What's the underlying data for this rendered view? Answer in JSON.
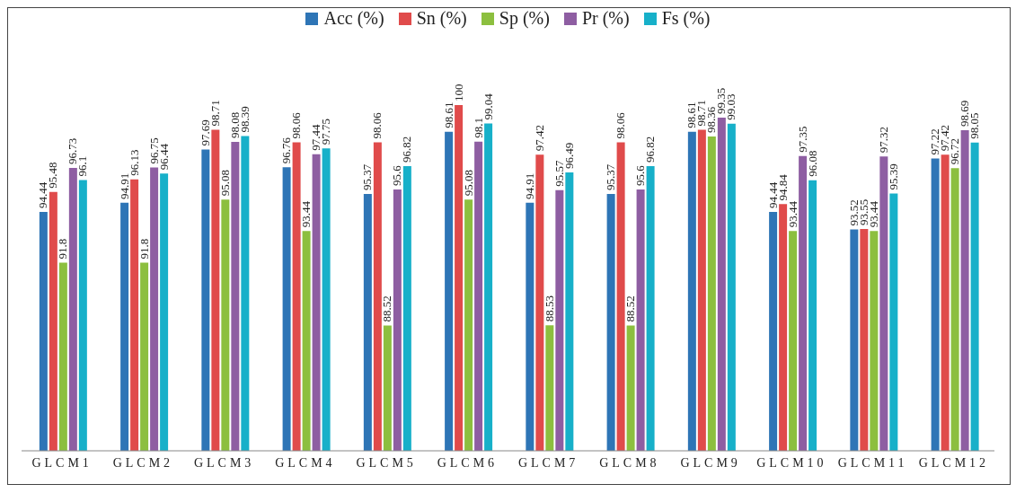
{
  "chart_data": {
    "type": "bar",
    "categories": [
      "GLCM1",
      "GLCM2",
      "GLCM3",
      "GLCM4",
      "GLCM5",
      "GLCM6",
      "GLCM7",
      "GLCM8",
      "GLCM9",
      "GLCM10",
      "GLCM11",
      "GLCM12"
    ],
    "series": [
      {
        "name": "Acc (%)",
        "color": "#2e75b6",
        "values": [
          94.44,
          94.91,
          97.69,
          96.76,
          95.37,
          98.61,
          94.91,
          95.37,
          98.61,
          94.44,
          93.52,
          97.22
        ]
      },
      {
        "name": "Sn (%)",
        "color": "#e04b4b",
        "values": [
          95.48,
          96.13,
          98.71,
          98.06,
          98.06,
          100,
          97.42,
          98.06,
          98.71,
          94.84,
          93.55,
          97.42
        ]
      },
      {
        "name": "Sp (%)",
        "color": "#8cbf3f",
        "values": [
          91.8,
          91.8,
          95.08,
          93.44,
          88.52,
          95.08,
          88.53,
          88.52,
          98.36,
          93.44,
          93.44,
          96.72
        ]
      },
      {
        "name": "Pr (%)",
        "color": "#8e5ea2",
        "values": [
          96.73,
          96.75,
          98.08,
          97.44,
          95.6,
          98.1,
          95.57,
          95.6,
          99.35,
          97.35,
          97.32,
          98.69
        ]
      },
      {
        "name": "Fs (%)",
        "color": "#17b0c9",
        "values": [
          96.1,
          96.44,
          98.39,
          97.75,
          96.82,
          99.04,
          96.49,
          96.82,
          99.03,
          96.08,
          95.39,
          98.05
        ]
      }
    ],
    "ylim": [
      82,
      100
    ],
    "data_labels": true,
    "legend": "top",
    "grid": false,
    "tick_labels": "x"
  }
}
